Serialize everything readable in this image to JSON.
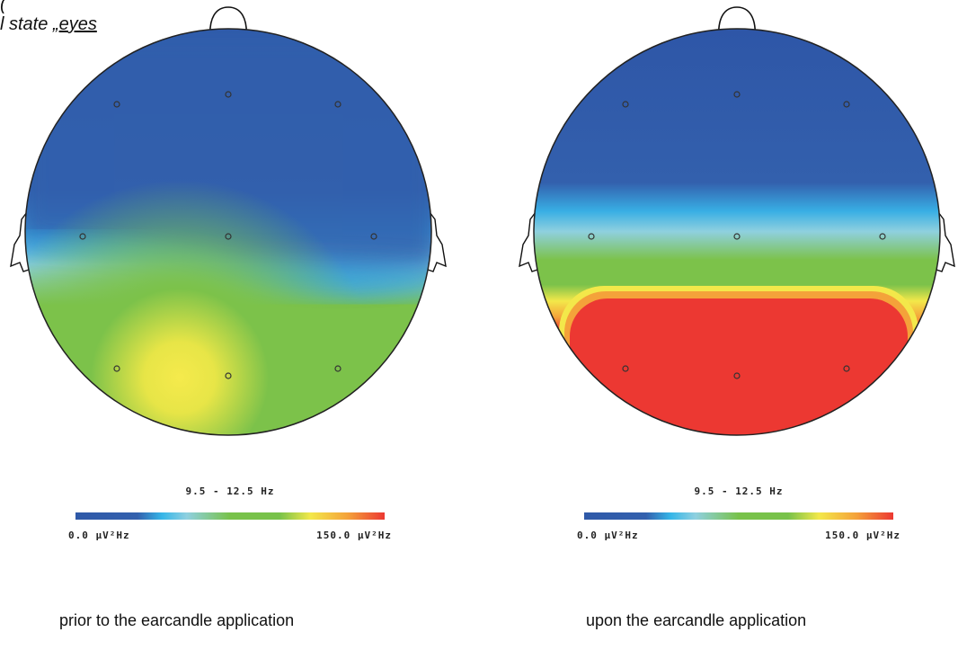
{
  "header": {
    "line1": "(",
    "line2_prefix": "l state „",
    "line2_underlined": "eyes"
  },
  "maps": [
    {
      "band": "9.5 - 12.5 Hz",
      "scale_min": "0.0 µV²Hz",
      "scale_max": "150.0 µV²Hz",
      "caption": "prior to the earcandle application"
    },
    {
      "band": "9.5 - 12.5 Hz",
      "scale_min": "0.0 µV²Hz",
      "scale_max": "150.0 µV²Hz",
      "caption": "upon the earcandle application"
    }
  ],
  "colors": {
    "blue": "#2f59a8",
    "cyan": "#35b6e8",
    "light_cyan": "#8fd0e0",
    "green": "#78c24a",
    "yellow": "#f3e84a",
    "orange": "#f4a23a",
    "red": "#ec3832"
  }
}
